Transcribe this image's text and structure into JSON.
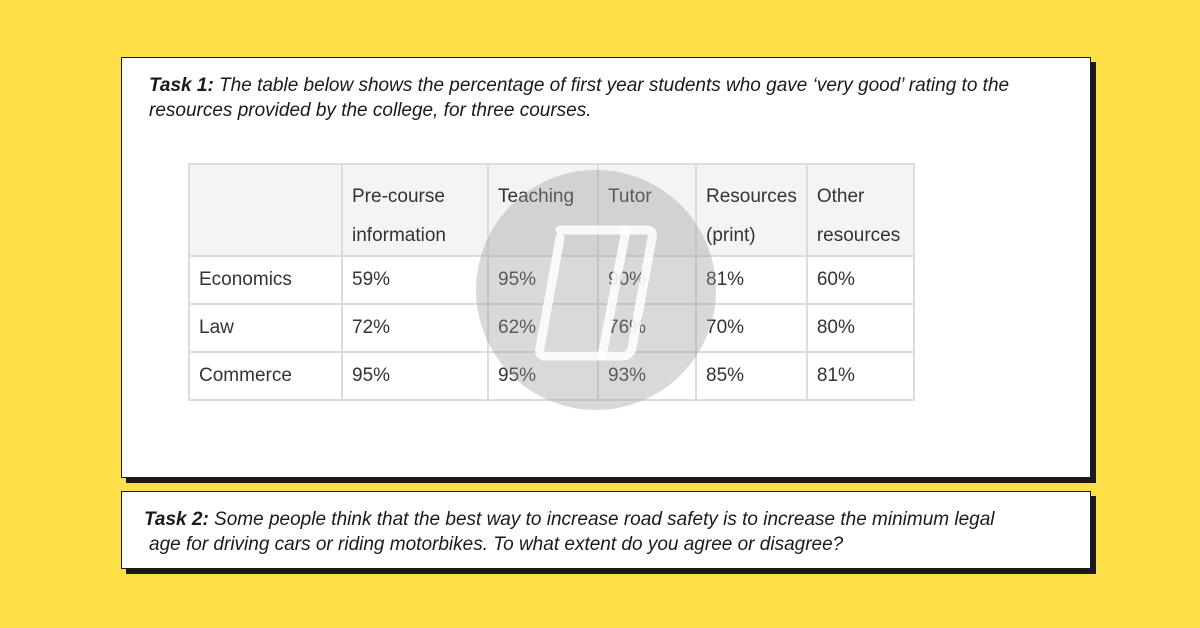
{
  "task1": {
    "label": "Task 1:",
    "text": " The table below shows the percentage of first year students who gave ‘very good’ rating to the resources provided by the college, for three courses."
  },
  "table": {
    "headers": [
      "",
      "Pre-course information",
      "Teaching",
      "Tutor",
      "Resources (print)",
      "Other resources"
    ],
    "rows": [
      [
        "Economics",
        "59%",
        "95%",
        "90%",
        "81%",
        "60%"
      ],
      [
        "Law",
        "72%",
        "62%",
        "76%",
        "70%",
        "80%"
      ],
      [
        "Commerce",
        "95%",
        "95%",
        "93%",
        "85%",
        "81%"
      ]
    ]
  },
  "task2": {
    "label": "Task 2:",
    "text_line1": " Some people think that the best way to increase road safety is to increase the minimum legal",
    "text_line2": "age for driving cars or riding motorbikes.  To what extent do you agree or disagree?"
  },
  "watermark": {
    "icon": "notebook-logo-icon"
  },
  "colors": {
    "background": "#FFDF47",
    "card": "#FFFFFF",
    "table_header_bg": "#F2F4F6",
    "table_border": "#D9DDE2"
  }
}
